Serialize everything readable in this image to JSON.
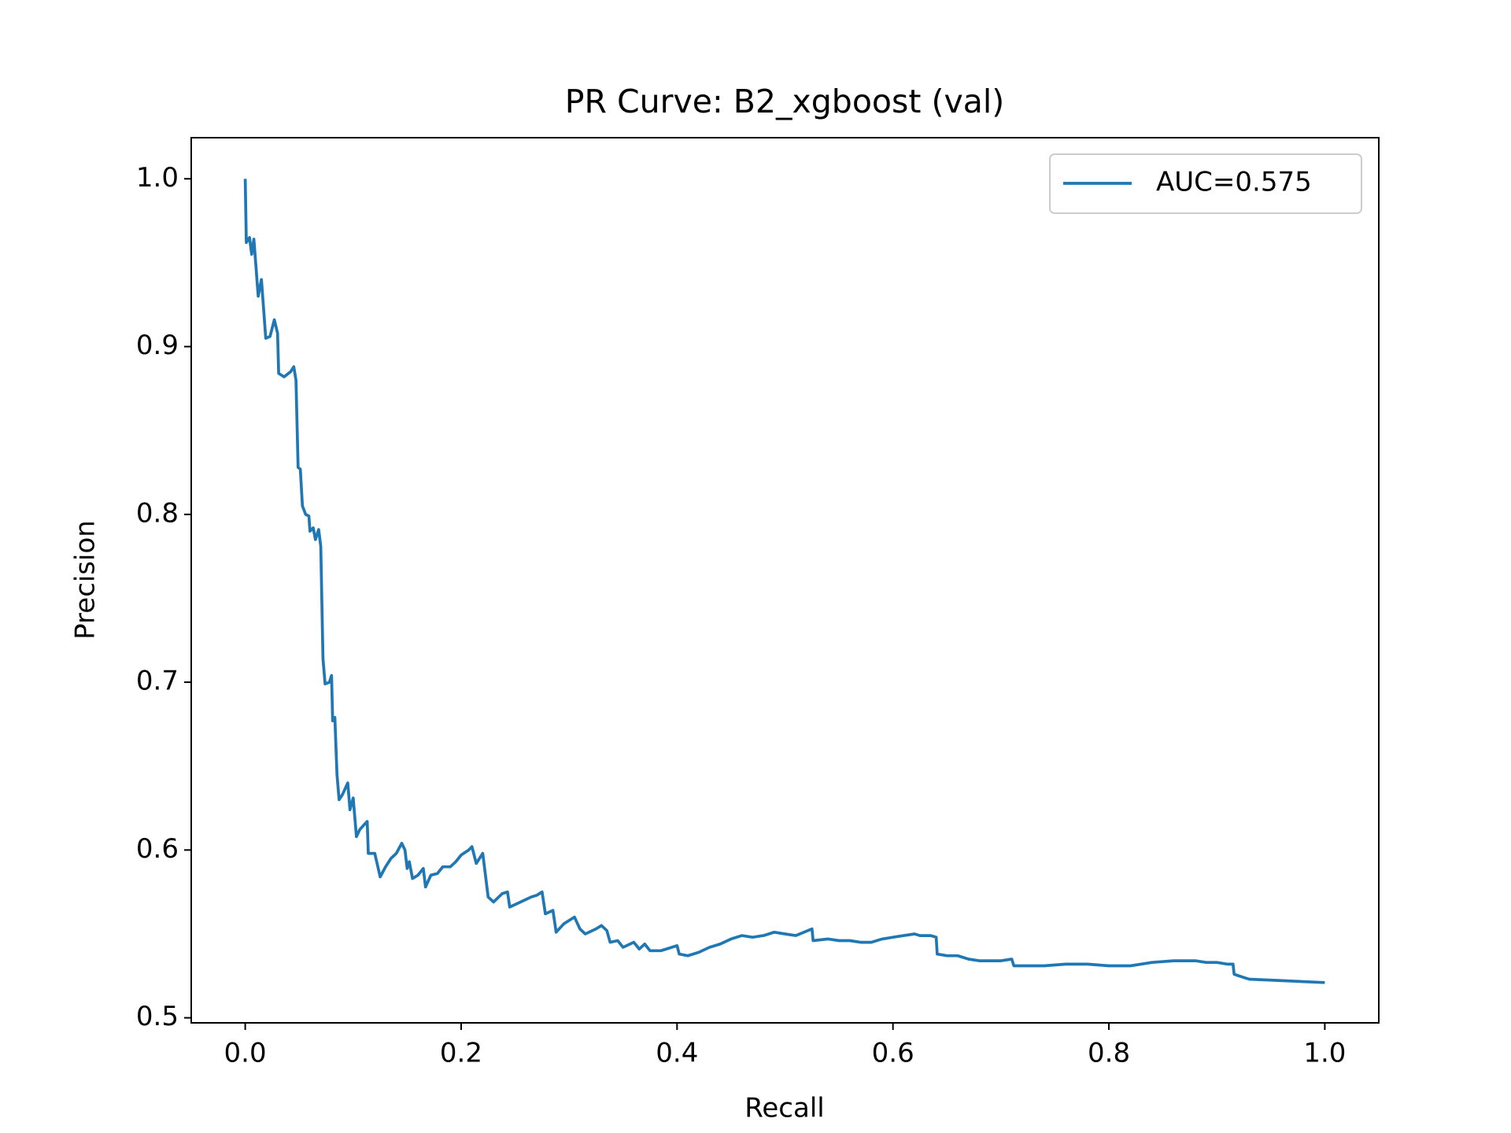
{
  "chart_data": {
    "type": "line",
    "title": "PR Curve: B2_xgboost (val)",
    "xlabel": "Recall",
    "ylabel": "Precision",
    "x": [
      0,
      0.001,
      0.004,
      0.006,
      0.008,
      0.012,
      0.015,
      0.019,
      0.023,
      0.027,
      0.03,
      0.031,
      0.036,
      0.042,
      0.045,
      0.047,
      0.049,
      0.051,
      0.053,
      0.056,
      0.059,
      0.06,
      0.063,
      0.065,
      0.068,
      0.07,
      0.072,
      0.074,
      0.078,
      0.08,
      0.081,
      0.083,
      0.085,
      0.087,
      0.09,
      0.095,
      0.097,
      0.1,
      0.103,
      0.106,
      0.11,
      0.113,
      0.114,
      0.12,
      0.125,
      0.13,
      0.135,
      0.14,
      0.145,
      0.148,
      0.15,
      0.152,
      0.155,
      0.16,
      0.165,
      0.167,
      0.172,
      0.178,
      0.183,
      0.19,
      0.195,
      0.2,
      0.207,
      0.21,
      0.214,
      0.22,
      0.225,
      0.23,
      0.238,
      0.243,
      0.245,
      0.255,
      0.265,
      0.27,
      0.275,
      0.278,
      0.285,
      0.288,
      0.295,
      0.305,
      0.31,
      0.315,
      0.325,
      0.33,
      0.335,
      0.338,
      0.345,
      0.35,
      0.36,
      0.365,
      0.37,
      0.375,
      0.385,
      0.39,
      0.4,
      0.402,
      0.41,
      0.42,
      0.43,
      0.44,
      0.45,
      0.46,
      0.47,
      0.48,
      0.49,
      0.5,
      0.51,
      0.525,
      0.526,
      0.54,
      0.55,
      0.56,
      0.57,
      0.58,
      0.59,
      0.6,
      0.61,
      0.62,
      0.625,
      0.635,
      0.64,
      0.641,
      0.65,
      0.66,
      0.67,
      0.68,
      0.69,
      0.7,
      0.71,
      0.712,
      0.72,
      0.73,
      0.74,
      0.76,
      0.78,
      0.8,
      0.82,
      0.84,
      0.86,
      0.88,
      0.89,
      0.9,
      0.91,
      0.915,
      0.916,
      0.925,
      0.93,
      1.0
    ],
    "series": [
      {
        "name": "AUC=0.575",
        "color": "#1f77b4",
        "values": [
          1.0,
          0.962,
          0.965,
          0.955,
          0.964,
          0.93,
          0.94,
          0.905,
          0.906,
          0.916,
          0.908,
          0.884,
          0.882,
          0.885,
          0.888,
          0.88,
          0.828,
          0.827,
          0.805,
          0.8,
          0.799,
          0.79,
          0.792,
          0.785,
          0.791,
          0.781,
          0.714,
          0.699,
          0.7,
          0.704,
          0.677,
          0.679,
          0.645,
          0.63,
          0.633,
          0.64,
          0.624,
          0.631,
          0.608,
          0.612,
          0.615,
          0.617,
          0.598,
          0.598,
          0.584,
          0.59,
          0.595,
          0.598,
          0.604,
          0.6,
          0.589,
          0.593,
          0.583,
          0.585,
          0.589,
          0.578,
          0.585,
          0.586,
          0.59,
          0.59,
          0.593,
          0.597,
          0.6,
          0.602,
          0.592,
          0.598,
          0.572,
          0.569,
          0.574,
          0.575,
          0.566,
          0.569,
          0.572,
          0.573,
          0.575,
          0.562,
          0.564,
          0.551,
          0.556,
          0.56,
          0.553,
          0.55,
          0.553,
          0.555,
          0.552,
          0.545,
          0.546,
          0.542,
          0.545,
          0.541,
          0.544,
          0.54,
          0.54,
          0.541,
          0.543,
          0.538,
          0.537,
          0.539,
          0.542,
          0.544,
          0.547,
          0.549,
          0.548,
          0.549,
          0.551,
          0.55,
          0.549,
          0.553,
          0.546,
          0.547,
          0.546,
          0.546,
          0.545,
          0.545,
          0.547,
          0.548,
          0.549,
          0.55,
          0.549,
          0.549,
          0.548,
          0.538,
          0.537,
          0.537,
          0.535,
          0.534,
          0.534,
          0.534,
          0.535,
          0.531,
          0.531,
          0.531,
          0.531,
          0.532,
          0.532,
          0.531,
          0.531,
          0.533,
          0.534,
          0.534,
          0.533,
          0.533,
          0.532,
          0.532,
          0.526,
          0.524,
          0.523,
          0.521
        ]
      }
    ],
    "xlim": [
      -0.05,
      1.05
    ],
    "ylim": [
      0.497,
      1.0245
    ],
    "xticks": [
      {
        "value": 0,
        "label": "0.0"
      },
      0.2,
      0.4,
      0.6,
      0.8,
      {
        "value": 1,
        "label": "1.0"
      }
    ],
    "yticks": [
      0.5,
      0.6,
      0.7,
      0.8,
      0.9,
      {
        "value": 1,
        "label": "1.0"
      }
    ],
    "legend": "upper right"
  }
}
